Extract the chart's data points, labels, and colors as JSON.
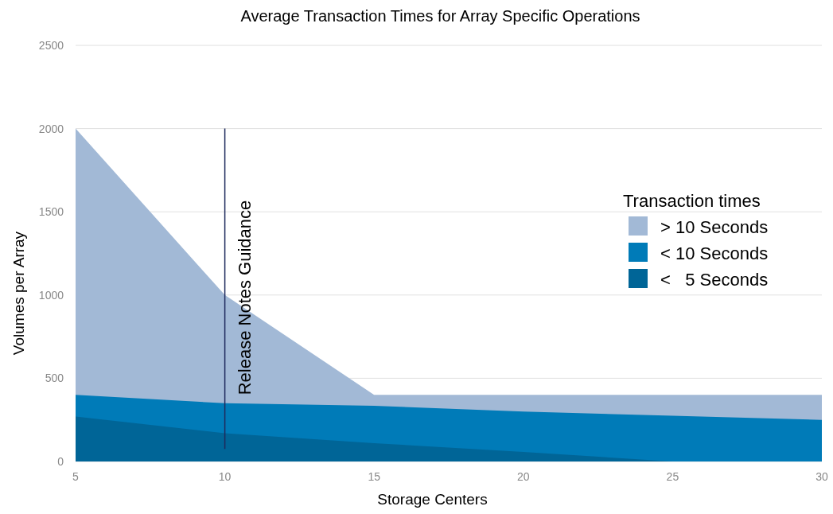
{
  "chart_data": {
    "type": "area",
    "title": "Average Transaction Times for Array Specific Operations",
    "xlabel": "Storage Centers",
    "ylabel": "Volumes per Array",
    "legend_title": "Transaction times",
    "x": [
      5,
      10,
      15,
      20,
      25,
      30
    ],
    "series": [
      {
        "name": "> 10 Seconds",
        "color": "#a2b9d6",
        "values": [
          2000,
          1000,
          400,
          400,
          400,
          400
        ]
      },
      {
        "name": "< 10 Seconds",
        "color": "#007bb8",
        "values": [
          400,
          350,
          335,
          300,
          275,
          250
        ]
      },
      {
        "name": "<   5 Seconds",
        "color": "#006597",
        "values": [
          270,
          170,
          110,
          57,
          0,
          0
        ]
      }
    ],
    "xlim": [
      5,
      30
    ],
    "xticks": [
      5,
      10,
      15,
      20,
      25,
      30
    ],
    "ylim": [
      0,
      2500
    ],
    "yticks": [
      0,
      500,
      1000,
      1500,
      2000,
      2500
    ],
    "grid": "y",
    "legend": "right",
    "ref_lines": [
      {
        "axis": "x",
        "value": 10,
        "label": "Release Notes Guidance",
        "color": "#1f2a5c"
      }
    ]
  }
}
